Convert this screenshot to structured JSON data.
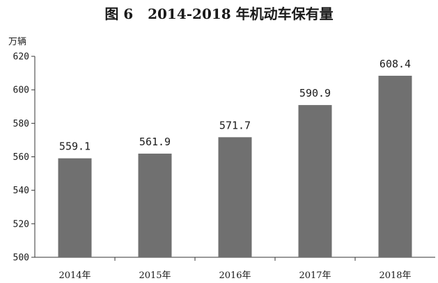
{
  "chart_data": {
    "type": "bar",
    "title": "图 6   2014-2018 年机动车保有量",
    "ylabel": "万辆",
    "xlabel": "",
    "categories": [
      "2014年",
      "2015年",
      "2016年",
      "2017年",
      "2018年"
    ],
    "values": [
      559.1,
      561.9,
      571.7,
      590.9,
      608.4
    ],
    "value_labels": [
      "559.1",
      "561.9",
      "571.7",
      "590.9",
      "608.4"
    ],
    "ylim": [
      500,
      620
    ],
    "yticks": [
      500,
      520,
      540,
      560,
      580,
      600,
      620
    ],
    "grid": false,
    "bar_color": "#707070"
  }
}
